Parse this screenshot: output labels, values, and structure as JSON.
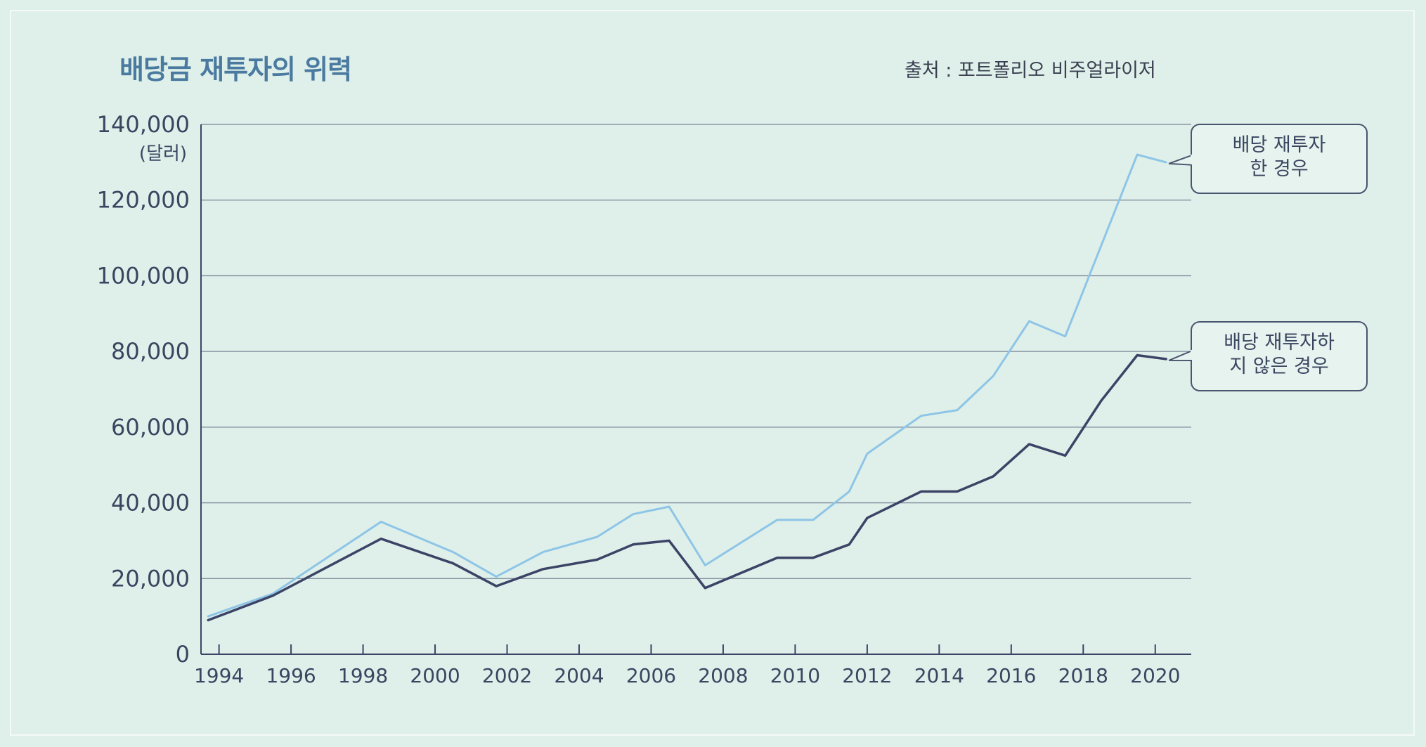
{
  "chart_data": {
    "type": "line",
    "title": "배당금 재투자의 위력",
    "source": "출처 : 포트폴리오 비주얼라이저",
    "y_unit": "(달러)",
    "ylim": [
      0,
      140000
    ],
    "y_ticks": [
      {
        "value": 0,
        "label": "0"
      },
      {
        "value": 20000,
        "label": "20,000"
      },
      {
        "value": 40000,
        "label": "40,000"
      },
      {
        "value": 60000,
        "label": "60,000"
      },
      {
        "value": 80000,
        "label": "80,000"
      },
      {
        "value": 100000,
        "label": "100,000"
      },
      {
        "value": 120000,
        "label": "120,000"
      },
      {
        "value": 140000,
        "label": "140,000"
      }
    ],
    "xlim": [
      1993.5,
      2021
    ],
    "x_ticks": [
      1994,
      1996,
      1998,
      2000,
      2002,
      2004,
      2006,
      2008,
      2010,
      2012,
      2014,
      2016,
      2018,
      2020
    ],
    "x_tick_labels": [
      "1994",
      "1996",
      "1998",
      "2000",
      "2002",
      "2004",
      "2006",
      "2008",
      "2010",
      "2012",
      "2014",
      "2016",
      "2018",
      "2020"
    ],
    "grid": "horizontal",
    "series": [
      {
        "name": "배당 재투자 한 경우",
        "label_lines": [
          "배당 재투자",
          "한 경우"
        ],
        "color": "#8ec5e6",
        "x": [
          1993.7,
          1995.5,
          1998.5,
          2000.5,
          2001.7,
          2003.0,
          2004.5,
          2005.5,
          2006.5,
          2007.5,
          2009.5,
          2010.5,
          2011.5,
          2012.0,
          2013.5,
          2014.5,
          2015.5,
          2016.5,
          2017.5,
          2019.5,
          2020.3
        ],
        "values": [
          10000,
          16000,
          35000,
          27000,
          20500,
          27000,
          31000,
          37000,
          39000,
          23500,
          35500,
          35500,
          43000,
          53000,
          63000,
          64500,
          73500,
          88000,
          84000,
          132000,
          130000
        ]
      },
      {
        "name": "배당 재투자하지 않은 경우",
        "label_lines": [
          "배당 재투자하",
          "지 않은 경우"
        ],
        "color": "#3b4466",
        "x": [
          1993.7,
          1995.5,
          1998.5,
          2000.5,
          2001.7,
          2003.0,
          2004.5,
          2005.5,
          2006.5,
          2007.5,
          2009.5,
          2010.5,
          2011.5,
          2012.0,
          2013.5,
          2014.5,
          2015.5,
          2016.5,
          2017.5,
          2018.5,
          2019.5,
          2020.3
        ],
        "values": [
          9000,
          15500,
          30500,
          24000,
          18000,
          22500,
          25000,
          29000,
          30000,
          17500,
          25500,
          25500,
          29000,
          36000,
          43000,
          43000,
          47000,
          55500,
          52500,
          67000,
          79000,
          78000
        ]
      }
    ]
  }
}
